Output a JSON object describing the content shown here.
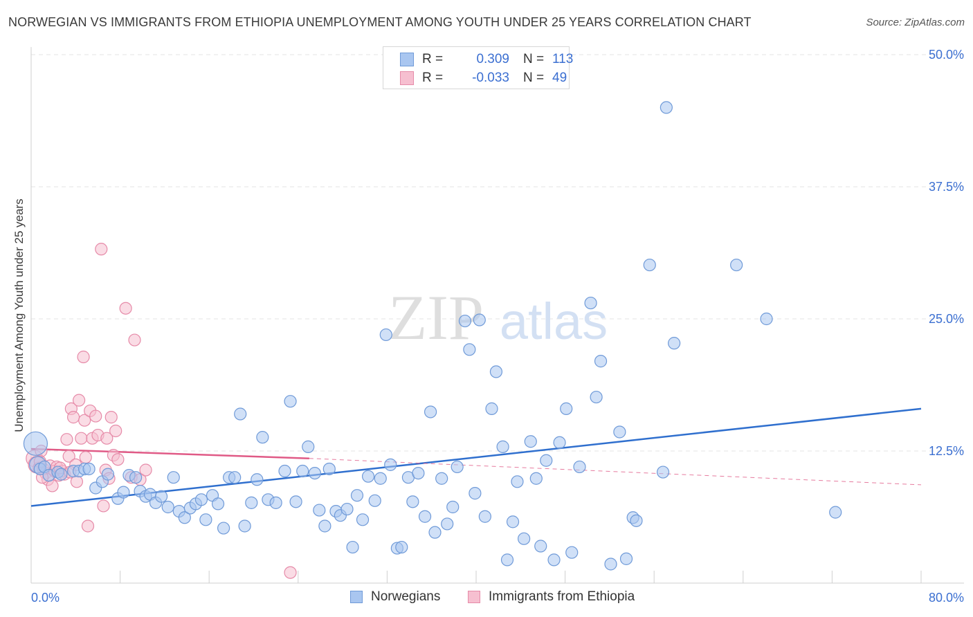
{
  "title": "NORWEGIAN VS IMMIGRANTS FROM ETHIOPIA UNEMPLOYMENT AMONG YOUTH UNDER 25 YEARS CORRELATION CHART",
  "source": "Source: ZipAtlas.com",
  "watermark": {
    "zip": "ZIP",
    "atlas": "atlas"
  },
  "colors": {
    "blue_fill": "#a9c6f0",
    "blue_stroke": "#6f9ad8",
    "blue_line": "#2f6fce",
    "pink_fill": "#f6bfd0",
    "pink_stroke": "#e68aa8",
    "pink_line": "#e05a86",
    "value_text": "#3b6fd1",
    "grid": "#e3e3e3"
  },
  "legend_stats": [
    {
      "r_label": "R =",
      "r_value": "0.309",
      "n_label": "N =",
      "n_value": "113",
      "swatch": "blue"
    },
    {
      "r_label": "R =",
      "r_value": "-0.033",
      "n_label": "N =",
      "n_value": "49",
      "swatch": "pink"
    }
  ],
  "bottom_legend": [
    {
      "label": "Norwegians",
      "swatch": "blue"
    },
    {
      "label": "Immigrants from Ethiopia",
      "swatch": "pink"
    }
  ],
  "chart_data": {
    "type": "scatter",
    "title": "NORWEGIAN VS IMMIGRANTS FROM ETHIOPIA UNEMPLOYMENT AMONG YOUTH UNDER 25 YEARS CORRELATION CHART",
    "xlabel": "",
    "ylabel": "Unemployment Among Youth under 25 years",
    "xlim": [
      0,
      80
    ],
    "ylim": [
      0,
      50
    ],
    "x_tick_labels": [
      {
        "value": 0,
        "label": "0.0%"
      },
      {
        "value": 80,
        "label": "80.0%"
      }
    ],
    "y_tick_labels": [
      {
        "value": 12.5,
        "label": "12.5%"
      },
      {
        "value": 25,
        "label": "25.0%"
      },
      {
        "value": 37.5,
        "label": "37.5%"
      },
      {
        "value": 50,
        "label": "50.0%"
      }
    ],
    "grid": true,
    "series": [
      {
        "name": "Norwegians",
        "color": "blue",
        "trend": {
          "x": [
            0,
            80
          ],
          "y": [
            7.3,
            16.5
          ]
        },
        "points": [
          [
            0.4,
            13.2,
            3
          ],
          [
            0.6,
            11.2,
            2
          ],
          [
            0.8,
            10.8,
            1
          ],
          [
            1.2,
            11.0,
            1
          ],
          [
            1.6,
            10.2,
            1
          ],
          [
            2.4,
            10.5,
            1
          ],
          [
            2.7,
            10.3,
            1
          ],
          [
            3.8,
            10.6,
            1
          ],
          [
            4.3,
            10.6,
            1
          ],
          [
            4.8,
            10.8,
            1
          ],
          [
            5.2,
            10.8,
            1
          ],
          [
            5.8,
            9.0,
            1
          ],
          [
            6.4,
            9.6,
            1
          ],
          [
            6.9,
            10.3,
            1
          ],
          [
            7.8,
            8.0,
            1
          ],
          [
            8.3,
            8.6,
            1
          ],
          [
            8.8,
            10.2,
            1
          ],
          [
            9.4,
            10.0,
            1
          ],
          [
            9.8,
            8.7,
            1
          ],
          [
            10.3,
            8.2,
            1
          ],
          [
            10.7,
            8.4,
            1
          ],
          [
            11.2,
            7.6,
            1
          ],
          [
            11.7,
            8.2,
            1
          ],
          [
            12.3,
            7.2,
            1
          ],
          [
            12.8,
            10.0,
            1
          ],
          [
            13.3,
            6.8,
            1
          ],
          [
            13.8,
            6.2,
            1
          ],
          [
            14.3,
            7.1,
            1
          ],
          [
            14.8,
            7.5,
            1
          ],
          [
            15.3,
            7.9,
            1
          ],
          [
            15.7,
            6.0,
            1
          ],
          [
            16.3,
            8.3,
            1
          ],
          [
            16.8,
            7.5,
            1
          ],
          [
            17.3,
            5.2,
            1
          ],
          [
            17.8,
            10.0,
            1
          ],
          [
            18.3,
            10.0,
            1
          ],
          [
            18.8,
            16.0,
            1
          ],
          [
            19.2,
            5.4,
            1
          ],
          [
            19.8,
            7.6,
            1
          ],
          [
            20.3,
            9.8,
            1
          ],
          [
            20.8,
            13.8,
            1
          ],
          [
            21.3,
            7.9,
            1
          ],
          [
            22.0,
            7.6,
            1
          ],
          [
            22.8,
            10.6,
            1
          ],
          [
            23.3,
            17.2,
            1
          ],
          [
            23.8,
            7.7,
            1
          ],
          [
            24.4,
            10.6,
            1
          ],
          [
            24.9,
            12.9,
            1
          ],
          [
            25.5,
            10.4,
            1
          ],
          [
            25.9,
            6.9,
            1
          ],
          [
            26.4,
            5.4,
            1
          ],
          [
            26.8,
            10.8,
            1
          ],
          [
            27.4,
            6.8,
            1
          ],
          [
            27.8,
            6.4,
            1
          ],
          [
            28.4,
            7.0,
            1
          ],
          [
            28.9,
            3.4,
            1
          ],
          [
            29.3,
            8.3,
            1
          ],
          [
            29.8,
            6.0,
            1
          ],
          [
            30.3,
            10.1,
            1
          ],
          [
            30.9,
            7.8,
            1
          ],
          [
            31.4,
            9.9,
            1
          ],
          [
            31.9,
            23.5,
            1
          ],
          [
            32.3,
            11.2,
            1
          ],
          [
            32.9,
            3.3,
            1
          ],
          [
            33.3,
            3.4,
            1
          ],
          [
            33.9,
            10.0,
            1
          ],
          [
            34.3,
            7.7,
            1
          ],
          [
            34.8,
            10.4,
            1
          ],
          [
            35.4,
            6.3,
            1
          ],
          [
            35.9,
            16.2,
            1
          ],
          [
            36.3,
            4.8,
            1
          ],
          [
            36.9,
            9.9,
            1
          ],
          [
            37.4,
            5.6,
            1
          ],
          [
            37.9,
            7.2,
            1
          ],
          [
            38.3,
            11.0,
            1
          ],
          [
            39.0,
            24.8,
            1
          ],
          [
            39.4,
            22.1,
            1
          ],
          [
            39.9,
            8.5,
            1
          ],
          [
            40.3,
            24.9,
            1
          ],
          [
            40.8,
            6.3,
            1
          ],
          [
            41.4,
            16.5,
            1
          ],
          [
            41.8,
            20.0,
            1
          ],
          [
            42.4,
            12.9,
            1
          ],
          [
            42.8,
            2.2,
            1
          ],
          [
            43.3,
            5.8,
            1
          ],
          [
            43.7,
            9.6,
            1
          ],
          [
            44.3,
            4.2,
            1
          ],
          [
            44.9,
            13.4,
            1
          ],
          [
            45.4,
            9.9,
            1
          ],
          [
            45.8,
            3.5,
            1
          ],
          [
            46.3,
            11.6,
            1
          ],
          [
            47.0,
            2.2,
            1
          ],
          [
            47.5,
            13.3,
            1
          ],
          [
            48.1,
            16.5,
            1
          ],
          [
            48.6,
            2.9,
            1
          ],
          [
            49.3,
            11.0,
            1
          ],
          [
            50.3,
            26.5,
            1
          ],
          [
            50.8,
            17.6,
            1
          ],
          [
            51.2,
            21.0,
            1
          ],
          [
            52.1,
            1.8,
            1
          ],
          [
            52.9,
            14.3,
            1
          ],
          [
            53.5,
            2.3,
            1
          ],
          [
            54.1,
            6.2,
            1
          ],
          [
            54.4,
            5.9,
            1
          ],
          [
            55.6,
            30.1,
            1
          ],
          [
            56.8,
            10.5,
            1
          ],
          [
            57.1,
            45.0,
            1
          ],
          [
            57.8,
            22.7,
            1
          ],
          [
            63.4,
            30.1,
            1
          ],
          [
            66.1,
            25.0,
            1
          ],
          [
            72.3,
            6.7,
            1
          ]
        ]
      },
      {
        "name": "Immigrants from Ethiopia",
        "color": "pink",
        "trend": {
          "x": [
            0,
            25
          ],
          "y": [
            12.7,
            11.8
          ]
        },
        "trend_extension": {
          "x": [
            25,
            80
          ],
          "y": [
            11.8,
            9.3
          ]
        },
        "points": [
          [
            0.3,
            11.8,
            2
          ],
          [
            0.5,
            11.2,
            2
          ],
          [
            0.7,
            10.9,
            1
          ],
          [
            0.9,
            12.5,
            1
          ],
          [
            1.1,
            10.8,
            1
          ],
          [
            1.3,
            10.4,
            1
          ],
          [
            1.5,
            9.8,
            1
          ],
          [
            1.7,
            11.1,
            1
          ],
          [
            1.9,
            9.2,
            1
          ],
          [
            2.1,
            10.6,
            1
          ],
          [
            2.3,
            11.0,
            1
          ],
          [
            2.5,
            10.2,
            1
          ],
          [
            2.8,
            10.6,
            1
          ],
          [
            3.0,
            10.3,
            1
          ],
          [
            3.2,
            13.6,
            1
          ],
          [
            3.4,
            12.0,
            1
          ],
          [
            3.6,
            16.5,
            1
          ],
          [
            3.8,
            15.7,
            1
          ],
          [
            4.0,
            11.2,
            1
          ],
          [
            4.1,
            9.6,
            1
          ],
          [
            4.3,
            17.3,
            1
          ],
          [
            4.5,
            13.7,
            1
          ],
          [
            4.7,
            21.4,
            1
          ],
          [
            4.8,
            15.4,
            1
          ],
          [
            4.9,
            11.9,
            1
          ],
          [
            5.1,
            5.4,
            1
          ],
          [
            5.3,
            16.3,
            1
          ],
          [
            5.5,
            13.7,
            1
          ],
          [
            5.8,
            15.8,
            1
          ],
          [
            6.0,
            14.0,
            1
          ],
          [
            6.3,
            31.6,
            1
          ],
          [
            6.5,
            7.3,
            1
          ],
          [
            6.7,
            10.7,
            1
          ],
          [
            6.8,
            13.7,
            1
          ],
          [
            7.0,
            9.9,
            1
          ],
          [
            7.2,
            15.7,
            1
          ],
          [
            7.4,
            12.1,
            1
          ],
          [
            7.6,
            14.4,
            1
          ],
          [
            7.8,
            11.7,
            1
          ],
          [
            8.5,
            26.0,
            1
          ],
          [
            9.0,
            10.0,
            1
          ],
          [
            9.3,
            23.0,
            1
          ],
          [
            9.8,
            9.8,
            1
          ],
          [
            10.3,
            10.7,
            1
          ],
          [
            2.6,
            10.9,
            1
          ],
          [
            1.0,
            10.0,
            1
          ],
          [
            0.8,
            11.5,
            1
          ],
          [
            23.3,
            1.0,
            1
          ],
          [
            3.5,
            10.5,
            1
          ]
        ]
      }
    ]
  }
}
